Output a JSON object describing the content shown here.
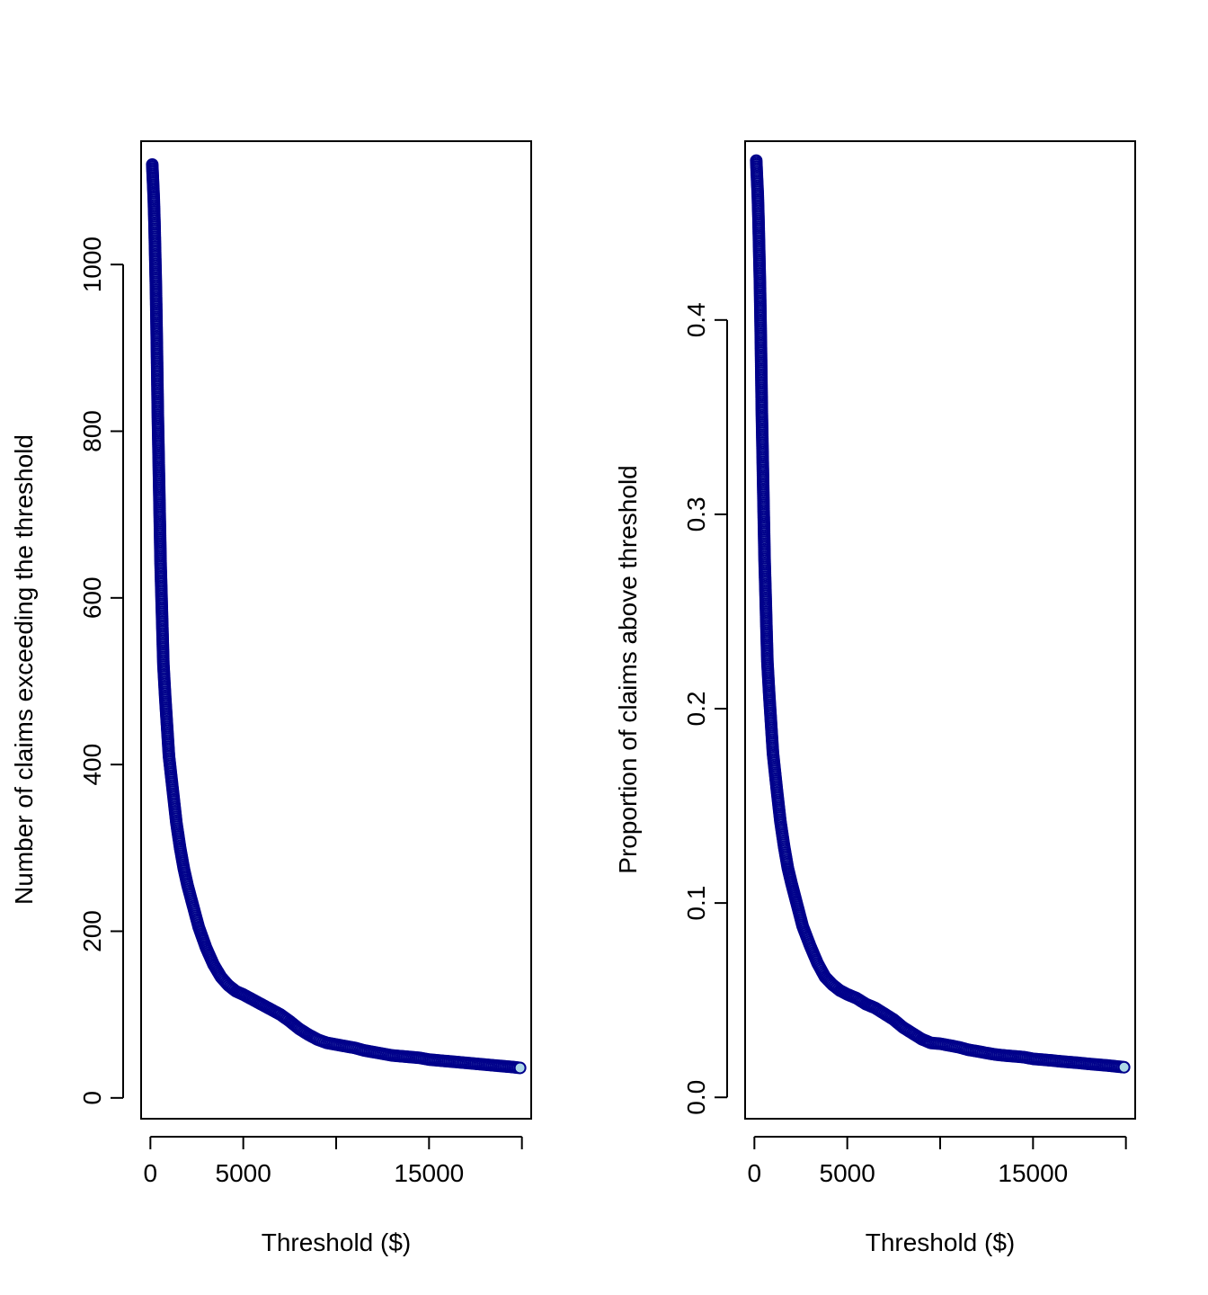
{
  "chart_data": [
    {
      "type": "scatter",
      "xlabel": "Threshold ($)",
      "ylabel": "Number of claims exceeding the threshold",
      "xlim": [
        -500,
        20500
      ],
      "ylim": [
        -25,
        1148
      ],
      "x_ticks": [
        0,
        5000,
        10000,
        15000,
        20000
      ],
      "x_tick_labels": [
        "0",
        "5000",
        "",
        "15000",
        ""
      ],
      "y_ticks": [
        0,
        200,
        400,
        600,
        800,
        1000
      ],
      "y_tick_labels": [
        "0",
        "200",
        "400",
        "600",
        "800",
        "1000"
      ],
      "grid": false,
      "legend": "none",
      "series": [
        {
          "marker_fill": "#add8e6",
          "marker_edge": "#00008b",
          "points": [
            [
              100,
              1120
            ],
            [
              140,
              1100
            ],
            [
              180,
              1080
            ],
            [
              220,
              1050
            ],
            [
              260,
              1010
            ],
            [
              300,
              970
            ],
            [
              350,
              900
            ],
            [
              400,
              820
            ],
            [
              450,
              760
            ],
            [
              500,
              700
            ],
            [
              550,
              640
            ],
            [
              600,
              600
            ],
            [
              650,
              560
            ],
            [
              700,
              520
            ],
            [
              800,
              480
            ],
            [
              900,
              445
            ],
            [
              1000,
              410
            ],
            [
              1200,
              370
            ],
            [
              1400,
              330
            ],
            [
              1600,
              300
            ],
            [
              1800,
              275
            ],
            [
              2000,
              255
            ],
            [
              2300,
              230
            ],
            [
              2600,
              205
            ],
            [
              3000,
              180
            ],
            [
              3400,
              160
            ],
            [
              3800,
              145
            ],
            [
              4200,
              135
            ],
            [
              4600,
              128
            ],
            [
              5000,
              124
            ],
            [
              5500,
              118
            ],
            [
              6000,
              112
            ],
            [
              6500,
              106
            ],
            [
              7000,
              100
            ],
            [
              7500,
              92
            ],
            [
              8000,
              83
            ],
            [
              8500,
              76
            ],
            [
              9000,
              70
            ],
            [
              9500,
              66
            ],
            [
              10000,
              64
            ],
            [
              10500,
              62
            ],
            [
              11000,
              60
            ],
            [
              11500,
              57
            ],
            [
              12000,
              55
            ],
            [
              12500,
              53
            ],
            [
              13000,
              51
            ],
            [
              13500,
              50
            ],
            [
              14000,
              49
            ],
            [
              14500,
              48
            ],
            [
              15000,
              46
            ],
            [
              15500,
              45
            ],
            [
              16000,
              44
            ],
            [
              16500,
              43
            ],
            [
              17000,
              42
            ],
            [
              17500,
              41
            ],
            [
              18000,
              40
            ],
            [
              18500,
              39
            ],
            [
              19000,
              38
            ],
            [
              19500,
              37
            ],
            [
              19900,
              36
            ]
          ]
        }
      ]
    },
    {
      "type": "scatter",
      "xlabel": "Threshold ($)",
      "ylabel": "Proportion of claims above threshold",
      "xlim": [
        -500,
        20500
      ],
      "ylim": [
        -0.011,
        0.492
      ],
      "x_ticks": [
        0,
        5000,
        10000,
        15000,
        20000
      ],
      "x_tick_labels": [
        "0",
        "5000",
        "",
        "15000",
        ""
      ],
      "y_ticks": [
        0,
        0.1,
        0.2,
        0.3,
        0.4
      ],
      "y_tick_labels": [
        "0.0",
        "0.1",
        "0.2",
        "0.3",
        "0.4"
      ],
      "grid": false,
      "legend": "none",
      "series": [
        {
          "marker_fill": "#add8e6",
          "marker_edge": "#00008b",
          "points": [
            [
              100,
              0.482
            ],
            [
              140,
              0.473
            ],
            [
              180,
              0.465
            ],
            [
              220,
              0.452
            ],
            [
              260,
              0.435
            ],
            [
              300,
              0.418
            ],
            [
              350,
              0.388
            ],
            [
              400,
              0.353
            ],
            [
              450,
              0.327
            ],
            [
              500,
              0.301
            ],
            [
              550,
              0.276
            ],
            [
              600,
              0.259
            ],
            [
              650,
              0.241
            ],
            [
              700,
              0.224
            ],
            [
              800,
              0.207
            ],
            [
              900,
              0.192
            ],
            [
              1000,
              0.177
            ],
            [
              1200,
              0.159
            ],
            [
              1400,
              0.142
            ],
            [
              1600,
              0.129
            ],
            [
              1800,
              0.118
            ],
            [
              2000,
              0.11
            ],
            [
              2300,
              0.099
            ],
            [
              2600,
              0.088
            ],
            [
              3000,
              0.078
            ],
            [
              3400,
              0.069
            ],
            [
              3800,
              0.062
            ],
            [
              4200,
              0.058
            ],
            [
              4600,
              0.055
            ],
            [
              5000,
              0.053
            ],
            [
              5500,
              0.051
            ],
            [
              6000,
              0.048
            ],
            [
              6500,
              0.046
            ],
            [
              7000,
              0.043
            ],
            [
              7500,
              0.04
            ],
            [
              8000,
              0.036
            ],
            [
              8500,
              0.033
            ],
            [
              9000,
              0.03
            ],
            [
              9500,
              0.028
            ],
            [
              10000,
              0.0276
            ],
            [
              10500,
              0.0267
            ],
            [
              11000,
              0.0258
            ],
            [
              11500,
              0.0245
            ],
            [
              12000,
              0.0237
            ],
            [
              12500,
              0.0228
            ],
            [
              13000,
              0.022
            ],
            [
              13500,
              0.0215
            ],
            [
              14000,
              0.0211
            ],
            [
              14500,
              0.0207
            ],
            [
              15000,
              0.0198
            ],
            [
              15500,
              0.0194
            ],
            [
              16000,
              0.019
            ],
            [
              16500,
              0.0185
            ],
            [
              17000,
              0.0181
            ],
            [
              17500,
              0.0177
            ],
            [
              18000,
              0.0172
            ],
            [
              18500,
              0.0168
            ],
            [
              19000,
              0.0164
            ],
            [
              19500,
              0.0159
            ],
            [
              19900,
              0.0155
            ]
          ]
        }
      ]
    }
  ]
}
